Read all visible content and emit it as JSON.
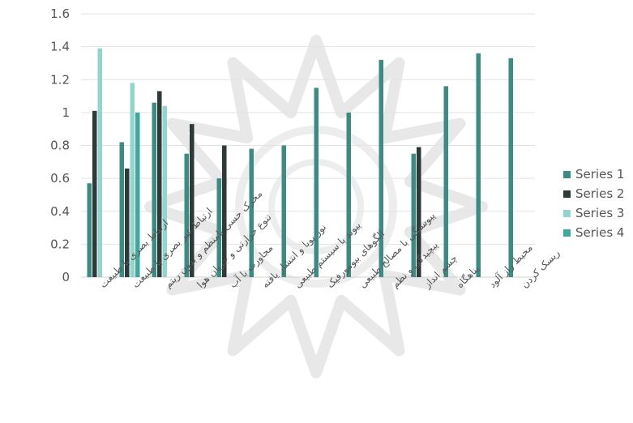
{
  "chart_data": {
    "type": "bar",
    "categories": [
      "ارتباط بصری با طبیعت",
      "ارتباط غیر بصری با طبیعت",
      "محرک حسی نامنظم و بدون ریتم",
      "تنوع حرارتی و جریان هوا",
      "مجاورت با آب",
      "نور پویا و انتشار یافته",
      "پیوند با سیستم طبیعی",
      "الگوهای بیومورفیک",
      "پیوستگی با مصالح طبیعی",
      "پیچیدگی و نظم",
      "چشم انداز",
      "پناهگاه",
      "محیط راز آلود",
      "ریسک کردن"
    ],
    "series": [
      {
        "name": "Series 1",
        "color": "#3d8c83",
        "values": [
          0.57,
          0.82,
          1.06,
          0.75,
          0.6,
          0.78,
          0.8,
          1.15,
          1.0,
          1.32,
          0.75,
          1.16,
          1.36,
          1.33
        ]
      },
      {
        "name": "Series 2",
        "color": "#2e3a39",
        "values": [
          1.01,
          0.66,
          1.13,
          0.93,
          0.8,
          null,
          null,
          null,
          null,
          null,
          0.79,
          null,
          null,
          null
        ]
      },
      {
        "name": "Series 3",
        "color": "#93d4cf",
        "values": [
          1.39,
          1.18,
          1.04,
          null,
          null,
          null,
          null,
          null,
          null,
          null,
          null,
          null,
          null,
          null
        ]
      },
      {
        "name": "Series 4",
        "color": "#3ea99c",
        "values": [
          null,
          1.0,
          null,
          null,
          null,
          null,
          null,
          null,
          null,
          null,
          null,
          null,
          null,
          null
        ]
      }
    ],
    "yticks": [
      "0",
      "0.2",
      "0.4",
      "0.6",
      "0.8",
      "1",
      "1.2",
      "1.4",
      "1.6"
    ],
    "ylim": [
      0,
      1.6
    ],
    "grid": true,
    "legend_position": "right"
  }
}
